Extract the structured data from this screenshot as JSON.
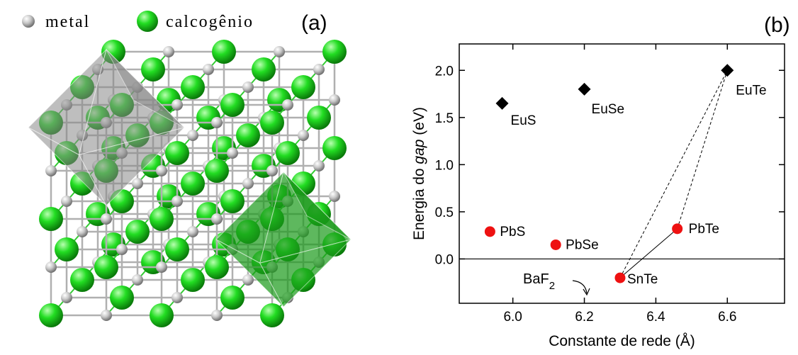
{
  "panel_a": {
    "legend": [
      "metal",
      "calcogênio"
    ],
    "label": "(a)"
  },
  "chart_data": {
    "type": "scatter",
    "label": "(b)",
    "xlabel": "Constante de rede (Å)",
    "ylabel": [
      "Energia do ",
      "gap",
      " (eV)"
    ],
    "xlim": [
      5.85,
      6.76
    ],
    "ylim": [
      -0.47,
      2.28
    ],
    "xticks": [
      {
        "value": 6,
        "label": "6.0"
      },
      {
        "value": 6.2,
        "label": "6.2"
      },
      {
        "value": 6.4,
        "label": "6.4"
      },
      {
        "value": 6.6,
        "label": "6.6"
      }
    ],
    "yticks": [
      {
        "value": 0,
        "label": "0.0"
      },
      {
        "value": 0.5,
        "label": "0.5"
      },
      {
        "value": 1,
        "label": "1.0"
      },
      {
        "value": 1.5,
        "label": "1.5"
      },
      {
        "value": 2,
        "label": "2.0"
      }
    ],
    "hline": 0,
    "series": [
      {
        "color": "#000000",
        "marker": "diamond",
        "x": [
          5.97,
          6.2,
          6.6
        ],
        "values": [
          1.65,
          1.8,
          2.0
        ],
        "point_labels": [
          "EuS",
          "EuSe",
          "EuTe"
        ]
      },
      {
        "color": "#ee1111",
        "marker": "circle",
        "x": [
          5.936,
          6.12,
          6.46,
          6.3
        ],
        "values": [
          0.29,
          0.15,
          0.32,
          -0.2
        ],
        "point_labels": [
          "PbS",
          "PbSe",
          "PbTe",
          "SnTe"
        ]
      }
    ],
    "annotation": [
      "BaF",
      "2"
    ]
  }
}
